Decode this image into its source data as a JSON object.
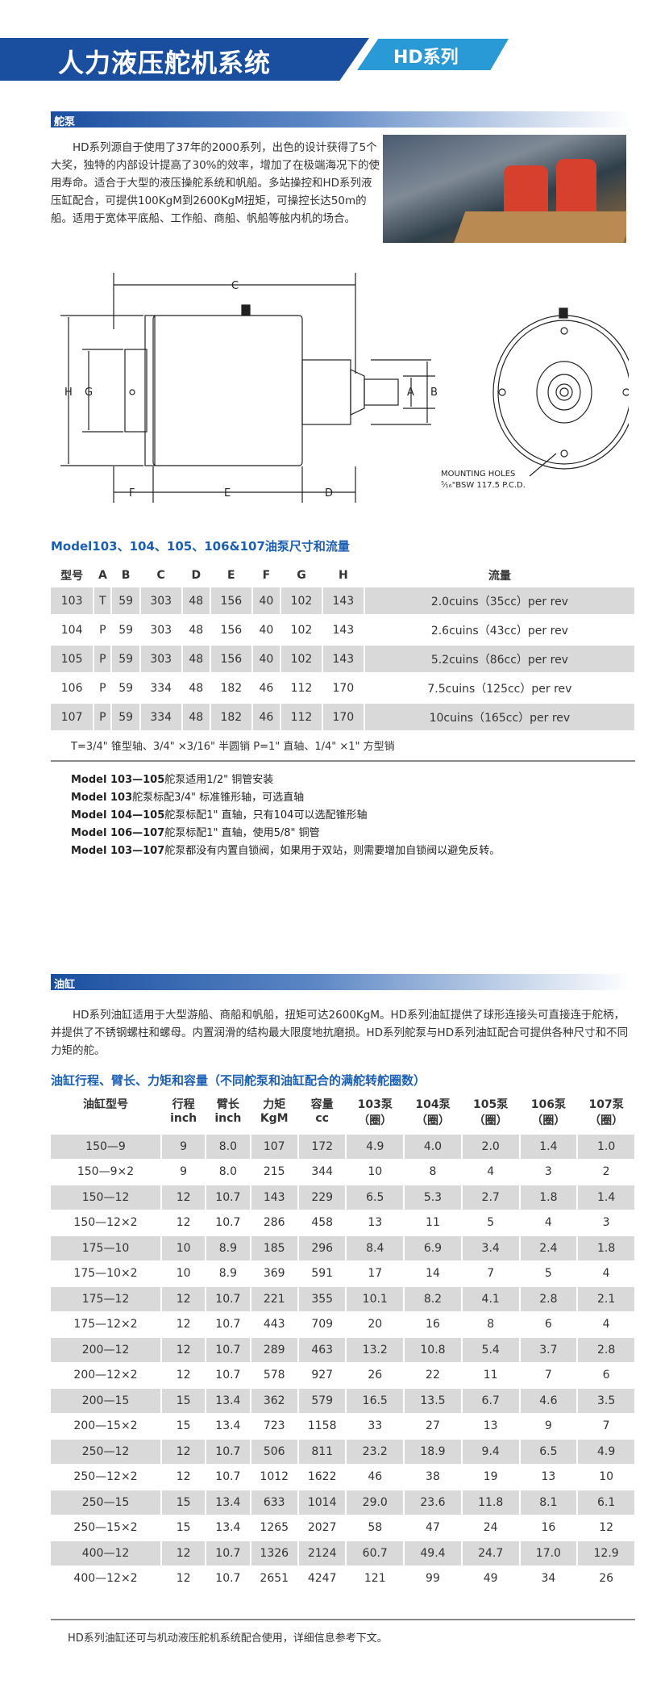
{
  "header": {
    "title": "人力液压舵机系统",
    "series": "HD系列"
  },
  "pump_section": {
    "heading": "舵泵",
    "paragraph": "HD系列源自于使用了37年的2000系列，出色的设计获得了5个大奖，独特的内部设计提高了30%的效率，增加了在极端海况下的使用寿命。适合于大型的液压操舵系统和帆船。多站操控和HD系列液压缸配合，可提供100KgM到2600KgM扭矩，可操控长达50m的船。适用于宽体平底船、工作船、商船、帆船等舷内机的场合。",
    "diagram": {
      "dims": [
        "C",
        "H",
        "G",
        "F",
        "E",
        "D",
        "A",
        "B"
      ],
      "mounting_label_1": "MOUNTING HOLES",
      "mounting_label_2": "⁵⁄₁₆\"BSW  117.5  P.C.D."
    },
    "table_title": "Model103、104、105、106&107油泵尺寸和流量",
    "columns": [
      "型号",
      "A",
      "B",
      "C",
      "D",
      "E",
      "F",
      "G",
      "H",
      "流量"
    ],
    "rows": [
      [
        "103",
        "T",
        "59",
        "303",
        "48",
        "156",
        "40",
        "102",
        "143",
        "2.0cuins（35cc）per rev"
      ],
      [
        "104",
        "P",
        "59",
        "303",
        "48",
        "156",
        "40",
        "102",
        "143",
        "2.6cuins（43cc）per rev"
      ],
      [
        "105",
        "P",
        "59",
        "303",
        "48",
        "156",
        "40",
        "102",
        "143",
        "5.2cuins（86cc）per rev"
      ],
      [
        "106",
        "P",
        "59",
        "334",
        "48",
        "182",
        "46",
        "112",
        "170",
        "7.5cuins（125cc）per rev"
      ],
      [
        "107",
        "P",
        "59",
        "334",
        "48",
        "182",
        "46",
        "112",
        "170",
        "10cuins（165cc）per rev"
      ]
    ],
    "footnote": "T=3/4\" 锥型轴、3/4\" ×3/16\" 半圆销      P=1\" 直轴、1/4\" ×1\" 方型销",
    "notes": [
      {
        "model": "Model 103—105",
        "text": "舵泵适用1/2\" 铜管安装"
      },
      {
        "model": "Model 103",
        "text": "舵泵标配3/4\" 标准锥形轴，可选直轴"
      },
      {
        "model": "Model 104—105",
        "text": "舵泵标配1\" 直轴，只有104可以选配锥形轴"
      },
      {
        "model": "Model 106—107",
        "text": "舵泵标配1\" 直轴，使用5/8\" 铜管"
      },
      {
        "model": "Model 103—107",
        "text": "舵泵都没有内置自锁阀，如果用于双站，则需要增加自锁阀以避免反转。"
      }
    ]
  },
  "cylinder_section": {
    "heading": "油缸",
    "paragraph": "HD系列油缸适用于大型游船、商船和帆船，扭矩可达2600KgM。HD系列油缸提供了球形连接头可直接连于舵柄，并提供了不锈钢螺柱和螺母。内置润滑的结构最大限度地抗磨损。HD系列舵泵与HD系列油缸配合可提供各种尺寸和不同力矩的舵。",
    "table_title": "油缸行程、臂长、力矩和容量（不同舵泵和油缸配合的满舵转舵圈数）",
    "columns": [
      [
        "油缸型号",
        ""
      ],
      [
        "行程",
        "inch"
      ],
      [
        "臂长",
        "inch"
      ],
      [
        "力矩",
        "KgM"
      ],
      [
        "容量",
        "cc"
      ],
      [
        "103泵",
        "（圈）"
      ],
      [
        "104泵",
        "（圈）"
      ],
      [
        "105泵",
        "（圈）"
      ],
      [
        "106泵",
        "（圈）"
      ],
      [
        "107泵",
        "（圈）"
      ]
    ],
    "rows": [
      [
        "150—9",
        "9",
        "8.0",
        "107",
        "172",
        "4.9",
        "4.0",
        "2.0",
        "1.4",
        "1.0"
      ],
      [
        "150—9×2",
        "9",
        "8.0",
        "215",
        "344",
        "10",
        "8",
        "4",
        "3",
        "2"
      ],
      [
        "150—12",
        "12",
        "10.7",
        "143",
        "229",
        "6.5",
        "5.3",
        "2.7",
        "1.8",
        "1.4"
      ],
      [
        "150—12×2",
        "12",
        "10.7",
        "286",
        "458",
        "13",
        "11",
        "5",
        "4",
        "3"
      ],
      [
        "175—10",
        "10",
        "8.9",
        "185",
        "296",
        "8.4",
        "6.9",
        "3.4",
        "2.4",
        "1.8"
      ],
      [
        "175—10×2",
        "10",
        "8.9",
        "369",
        "591",
        "17",
        "14",
        "7",
        "5",
        "4"
      ],
      [
        "175—12",
        "12",
        "10.7",
        "221",
        "355",
        "10.1",
        "8.2",
        "4.1",
        "2.8",
        "2.1"
      ],
      [
        "175—12×2",
        "12",
        "10.7",
        "443",
        "709",
        "20",
        "16",
        "8",
        "6",
        "4"
      ],
      [
        "200—12",
        "12",
        "10.7",
        "289",
        "463",
        "13.2",
        "10.8",
        "5.4",
        "3.7",
        "2.8"
      ],
      [
        "200—12×2",
        "12",
        "10.7",
        "578",
        "927",
        "26",
        "22",
        "11",
        "7",
        "6"
      ],
      [
        "200—15",
        "15",
        "13.4",
        "362",
        "579",
        "16.5",
        "13.5",
        "6.7",
        "4.6",
        "3.5"
      ],
      [
        "200—15×2",
        "15",
        "13.4",
        "723",
        "1158",
        "33",
        "27",
        "13",
        "9",
        "7"
      ],
      [
        "250—12",
        "12",
        "10.7",
        "506",
        "811",
        "23.2",
        "18.9",
        "9.4",
        "6.5",
        "4.9"
      ],
      [
        "250—12×2",
        "12",
        "10.7",
        "1012",
        "1622",
        "46",
        "38",
        "19",
        "13",
        "10"
      ],
      [
        "250—15",
        "15",
        "13.4",
        "633",
        "1014",
        "29.0",
        "23.6",
        "11.8",
        "8.1",
        "6.1"
      ],
      [
        "250—15×2",
        "15",
        "13.4",
        "1265",
        "2027",
        "58",
        "47",
        "24",
        "16",
        "12"
      ],
      [
        "400—12",
        "12",
        "10.7",
        "1326",
        "2124",
        "60.7",
        "49.4",
        "24.7",
        "17.0",
        "12.9"
      ],
      [
        "400—12×2",
        "12",
        "10.7",
        "2651",
        "4247",
        "121",
        "99",
        "49",
        "34",
        "26"
      ]
    ],
    "footnote": "HD系列油缸还可与机动液压舵机系统配合使用，详细信息参考下文。"
  },
  "colors": {
    "primary_blue": "#1a4fa0",
    "accent_blue": "#2a9ad6",
    "title_blue": "#1a5fb4",
    "row_gray": "#d9d9d9"
  }
}
